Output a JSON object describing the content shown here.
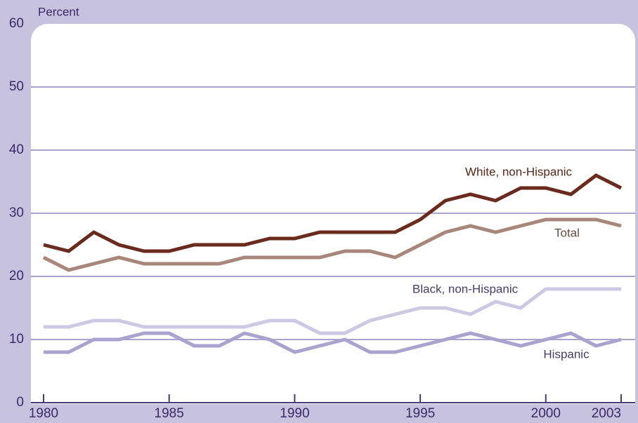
{
  "chart_data": {
    "type": "line",
    "y_label": "Percent",
    "x": [
      1980,
      1981,
      1982,
      1983,
      1984,
      1985,
      1986,
      1987,
      1988,
      1989,
      1990,
      1991,
      1992,
      1993,
      1994,
      1995,
      1996,
      1997,
      1998,
      1999,
      2000,
      2001,
      2002,
      2003
    ],
    "xlim": [
      1980,
      2003
    ],
    "xticks": [
      1980,
      1985,
      1990,
      1995,
      2000,
      2003
    ],
    "ylim": [
      0,
      60
    ],
    "yticks": [
      0,
      10,
      20,
      30,
      40,
      50,
      60
    ],
    "grid": true,
    "series": [
      {
        "name": "White, non-Hispanic",
        "color": "#6b2a1e",
        "values": [
          25,
          24,
          27,
          25,
          24,
          24,
          25,
          25,
          25,
          26,
          26,
          27,
          27,
          27,
          27,
          29,
          32,
          33,
          32,
          34,
          34,
          33,
          36,
          34
        ]
      },
      {
        "name": "Total",
        "color": "#a8877a",
        "values": [
          23,
          21,
          22,
          23,
          22,
          22,
          22,
          22,
          23,
          23,
          23,
          23,
          24,
          24,
          23,
          25,
          27,
          28,
          27,
          28,
          29,
          29,
          29,
          28
        ]
      },
      {
        "name": "Black, non-Hispanic",
        "color": "#cdc8e4",
        "values": [
          12,
          12,
          13,
          13,
          12,
          12,
          12,
          12,
          12,
          13,
          13,
          11,
          11,
          13,
          14,
          15,
          15,
          14,
          16,
          15,
          18,
          18,
          18,
          18
        ]
      },
      {
        "name": "Hispanic",
        "color": "#aaa3cf",
        "values": [
          8,
          8,
          10,
          10,
          11,
          11,
          9,
          9,
          11,
          10,
          8,
          9,
          10,
          8,
          8,
          9,
          10,
          11,
          10,
          9,
          10,
          11,
          9,
          10
        ]
      }
    ]
  }
}
